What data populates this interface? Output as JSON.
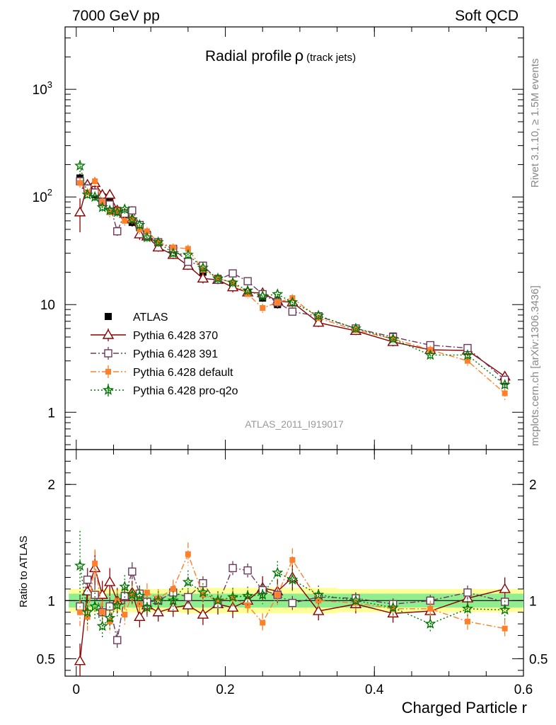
{
  "header": {
    "left": "7000 GeV pp",
    "right": "Soft QCD"
  },
  "side": {
    "top": "Rivet 3.1.10, ≥ 1.5M events",
    "bottom": "mcplots.cern.ch [arXiv:1306.3436]"
  },
  "title": {
    "main": "Radial profile",
    "symbol": "ρ",
    "sub": "(track jets)"
  },
  "watermark": "ATLAS_2011_I919017",
  "xlabel": "Charged Particle r",
  "ratio_label": "Ratio to ATLAS",
  "chart_data": {
    "type": "line",
    "main": {
      "yscale": "log",
      "ylim": [
        0.45,
        3800
      ],
      "yticks": [
        {
          "v": 1,
          "label": "1"
        },
        {
          "v": 10,
          "label": "10"
        },
        {
          "v": 100,
          "label": "10",
          "exp": "2"
        },
        {
          "v": 1000,
          "label": "10",
          "exp": "3"
        }
      ]
    },
    "ratio": {
      "ylim": [
        0.35,
        2.3
      ],
      "yticks": [
        {
          "v": 0.5,
          "label": "0.5"
        },
        {
          "v": 1,
          "label": "1"
        },
        {
          "v": 2,
          "label": "2"
        }
      ]
    },
    "xlim": [
      -0.015,
      0.6
    ],
    "xticks": [
      {
        "v": 0,
        "label": "0"
      },
      {
        "v": 0.2,
        "label": "0.2"
      },
      {
        "v": 0.4,
        "label": "0.4"
      },
      {
        "v": 0.6,
        "label": "0.6"
      }
    ],
    "legend_position": "lower-left",
    "x": [
      0.005,
      0.015,
      0.025,
      0.035,
      0.045,
      0.055,
      0.065,
      0.075,
      0.085,
      0.095,
      0.11,
      0.13,
      0.15,
      0.17,
      0.19,
      0.21,
      0.23,
      0.25,
      0.27,
      0.29,
      0.325,
      0.375,
      0.425,
      0.475,
      0.525,
      0.575
    ],
    "series": [
      {
        "name": "ATLAS",
        "color": "#000000",
        "marker": "square-filled",
        "values": [
          150,
          120,
          105,
          100,
          90,
          75,
          68,
          58,
          52,
          45,
          38,
          31,
          24,
          20,
          17.5,
          15.5,
          13,
          11.5,
          10,
          8.7,
          7.5,
          5.9,
          5.1,
          4.2,
          3.7,
          1.95
        ],
        "err": [
          15,
          12,
          10,
          9,
          8,
          7,
          6,
          5,
          4.5,
          4,
          3,
          2.5,
          2,
          1.6,
          1.4,
          1.2,
          1.0,
          0.9,
          0.8,
          0.7,
          0.5,
          0.4,
          0.35,
          0.3,
          0.3,
          0.2
        ]
      },
      {
        "name": "Pythia 6.428 370",
        "color": "#8b0000",
        "marker": "triangle-open",
        "dash": "",
        "values": [
          72,
          130,
          135,
          105,
          105,
          75,
          70,
          62,
          45,
          43,
          34,
          29,
          23,
          17.5,
          17,
          14.5,
          13,
          12.8,
          10.8,
          10.5,
          6.8,
          5.7,
          4.5,
          3.8,
          3.75,
          2.15
        ],
        "err": [
          25,
          15,
          15,
          10,
          10,
          8,
          7,
          6,
          5,
          4,
          3,
          2.5,
          2,
          1.8,
          1.5,
          1.5,
          1.2,
          1.2,
          1.0,
          1.0,
          0.6,
          0.5,
          0.4,
          0.3,
          0.3,
          0.2
        ],
        "ratio": [
          0.48,
          1.08,
          1.28,
          1.05,
          1.16,
          1.0,
          1.03,
          1.07,
          0.86,
          0.96,
          0.9,
          0.94,
          0.96,
          0.88,
          0.97,
          0.94,
          1.0,
          1.11,
          1.08,
          1.2,
          0.91,
          0.97,
          0.89,
          0.91,
          1.02,
          1.1
        ],
        "rerr": [
          0.15,
          0.2,
          0.15,
          0.12,
          0.12,
          0.11,
          0.1,
          0.1,
          0.09,
          0.09,
          0.08,
          0.08,
          0.08,
          0.09,
          0.09,
          0.09,
          0.09,
          0.1,
          0.1,
          0.11,
          0.08,
          0.08,
          0.08,
          0.08,
          0.08,
          0.1
        ]
      },
      {
        "name": "Pythia 6.428 391",
        "color": "#6b3a5a",
        "marker": "square-open",
        "dash": "8,3,2,3",
        "values": [
          140,
          120,
          110,
          90,
          85,
          48,
          70,
          75,
          55,
          44,
          38,
          33,
          25,
          23,
          17,
          19.5,
          16.5,
          12.5,
          10.5,
          8.6,
          7.8,
          6.0,
          5.0,
          4.2,
          3.95,
          2.0
        ],
        "err": [
          14,
          12,
          11,
          9,
          8,
          5,
          7,
          7,
          5,
          4,
          3,
          3,
          2,
          2,
          1.5,
          1.5,
          1.4,
          1.0,
          0.9,
          0.7,
          0.6,
          0.5,
          0.4,
          0.35,
          0.3,
          0.2
        ],
        "ratio": [
          0.95,
          1.18,
          1.05,
          0.9,
          0.95,
          0.66,
          1.04,
          1.25,
          1.06,
          0.99,
          1.0,
          1.07,
          1.03,
          1.15,
          0.97,
          1.28,
          1.26,
          1.09,
          1.05,
          0.98,
          1.03,
          1.02,
          0.97,
          1.0,
          1.07,
          0.99
        ],
        "rerr": [
          0.1,
          0.1,
          0.09,
          0.08,
          0.08,
          0.08,
          0.08,
          0.08,
          0.07,
          0.07,
          0.06,
          0.06,
          0.06,
          0.06,
          0.06,
          0.06,
          0.06,
          0.06,
          0.06,
          0.06,
          0.05,
          0.05,
          0.05,
          0.05,
          0.06,
          0.07
        ]
      },
      {
        "name": "Pythia 6.428 default",
        "color": "#ff7f2a",
        "marker": "square-filled-small",
        "dash": "8,3,2,3",
        "values": [
          135,
          110,
          140,
          90,
          72,
          75,
          60,
          62,
          50,
          48,
          38,
          34,
          33,
          21,
          17.5,
          16,
          12.5,
          9.3,
          10.5,
          11.5,
          7.5,
          5.8,
          4.8,
          3.8,
          3.0,
          1.5
        ],
        "err": [
          14,
          11,
          14,
          9,
          7,
          7,
          6,
          6,
          5,
          4.5,
          3.5,
          3,
          3,
          2,
          1.6,
          1.4,
          1.1,
          0.9,
          1.0,
          1.0,
          0.6,
          0.5,
          0.4,
          0.35,
          0.3,
          0.2
        ],
        "ratio": [
          0.9,
          0.86,
          1.32,
          0.9,
          0.82,
          1.0,
          0.88,
          1.05,
          0.97,
          1.07,
          1.02,
          1.1,
          1.4,
          1.05,
          1.0,
          1.02,
          0.96,
          0.81,
          1.05,
          1.35,
          1.0,
          0.98,
          0.93,
          0.93,
          0.82,
          0.76
        ],
        "rerr": [
          0.12,
          0.12,
          0.12,
          0.1,
          0.1,
          0.09,
          0.09,
          0.09,
          0.08,
          0.08,
          0.08,
          0.08,
          0.1,
          0.08,
          0.08,
          0.08,
          0.08,
          0.08,
          0.09,
          0.1,
          0.08,
          0.07,
          0.07,
          0.07,
          0.07,
          0.08
        ]
      },
      {
        "name": "Pythia 6.428 pro-q2o",
        "color": "#007700",
        "marker": "star-open",
        "dash": "2,3",
        "values": [
          195,
          105,
          100,
          80,
          75,
          72,
          77,
          62,
          55,
          42,
          38,
          30,
          29,
          22,
          17.5,
          16,
          13.5,
          12,
          12.5,
          10.5,
          7.9,
          6.0,
          4.8,
          3.4,
          3.4,
          1.8
        ],
        "err": [
          25,
          12,
          10,
          8,
          7,
          7,
          7,
          6,
          5,
          4,
          3.5,
          3,
          3,
          2,
          1.6,
          1.4,
          1.2,
          1.1,
          1.1,
          1.0,
          0.7,
          0.5,
          0.4,
          0.3,
          0.3,
          0.2
        ],
        "ratio": [
          1.3,
          0.9,
          0.95,
          0.78,
          0.85,
          0.96,
          1.12,
          1.05,
          1.04,
          0.94,
          1.0,
          1.0,
          1.16,
          1.07,
          1.0,
          1.03,
          1.04,
          1.05,
          1.24,
          1.18,
          1.05,
          1.0,
          0.94,
          0.8,
          0.93,
          0.92
        ],
        "rerr": [
          0.3,
          0.12,
          0.12,
          0.1,
          0.1,
          0.1,
          0.1,
          0.09,
          0.09,
          0.08,
          0.08,
          0.08,
          0.1,
          0.08,
          0.08,
          0.08,
          0.08,
          0.08,
          0.1,
          0.1,
          0.08,
          0.07,
          0.07,
          0.07,
          0.07,
          0.08
        ]
      }
    ],
    "band": {
      "inner": [
        0.06,
        0.06,
        0.06,
        0.06,
        0.06,
        0.06,
        0.06,
        0.06,
        0.06,
        0.06,
        0.06,
        0.06,
        0.06,
        0.06,
        0.06,
        0.06,
        0.06,
        0.06,
        0.06,
        0.06,
        0.06,
        0.06,
        0.06,
        0.06,
        0.06,
        0.06
      ],
      "outer": [
        0.1,
        0.1,
        0.1,
        0.1,
        0.1,
        0.1,
        0.1,
        0.1,
        0.1,
        0.1,
        0.1,
        0.1,
        0.11,
        0.11,
        0.11,
        0.11,
        0.11,
        0.11,
        0.11,
        0.11,
        0.11,
        0.1,
        0.1,
        0.1,
        0.1,
        0.1
      ],
      "inner_color": "#90ee90",
      "outer_color": "#ffff99"
    }
  }
}
